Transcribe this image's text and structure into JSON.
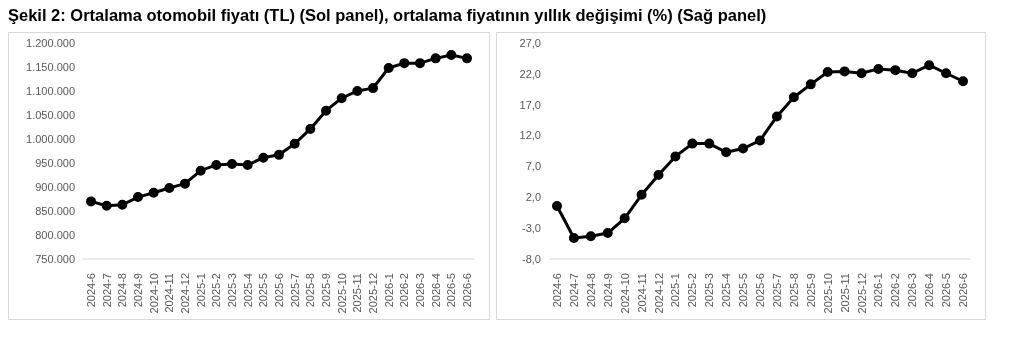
{
  "chart_data": [
    {
      "type": "line",
      "title": "Şekil 2: Ortalama otomobil fiyatı (TL) (Sol panel), ortalama fiyatının yıllık değişimi (%) (Sağ panel)",
      "categories": [
        "2024-6",
        "2024-7",
        "2024-8",
        "2024-9",
        "2024-10",
        "2024-11",
        "2024-12",
        "2025-1",
        "2025-2",
        "2025-3",
        "2025-4",
        "2025-5",
        "2025-6",
        "2025-7",
        "2025-8",
        "2025-9",
        "2025-10",
        "2025-11",
        "2025-12",
        "2026-1",
        "2026-2",
        "2026-3",
        "2026-4",
        "2026-5",
        "2026-6"
      ],
      "series": [
        {
          "color": "#000000",
          "values": [
            870000,
            861000,
            863000,
            879000,
            888000,
            898000,
            907000,
            934000,
            946000,
            948000,
            946000,
            961000,
            967000,
            990000,
            1021000,
            1059000,
            1085000,
            1100000,
            1106000,
            1148000,
            1158000,
            1158000,
            1168000,
            1175000,
            1168000
          ]
        }
      ],
      "ylim": [
        750000,
        1200000
      ],
      "yticks": [
        {
          "value": 750000,
          "label": "750.000"
        },
        {
          "value": 800000,
          "label": "800.000"
        },
        {
          "value": 850000,
          "label": "850.000"
        },
        {
          "value": 900000,
          "label": "900.000"
        },
        {
          "value": 950000,
          "label": "950.000"
        },
        {
          "value": 1000000,
          "label": "1.000.000"
        },
        {
          "value": 1050000,
          "label": "1.050.000"
        },
        {
          "value": 1100000,
          "label": "1.100.000"
        },
        {
          "value": 1150000,
          "label": "1.150.000"
        },
        {
          "value": 1200000,
          "label": "1.200.000"
        }
      ],
      "marker": "circle",
      "line_style": "solid",
      "grid": false,
      "legend": false
    },
    {
      "type": "line",
      "categories": [
        "2024-6",
        "2024-7",
        "2024-8",
        "2024-9",
        "2024-10",
        "2024-11",
        "2024-12",
        "2025-1",
        "2025-2",
        "2025-3",
        "2025-4",
        "2025-5",
        "2025-6",
        "2025-7",
        "2025-8",
        "2025-9",
        "2025-10",
        "2025-11",
        "2025-12",
        "2026-1",
        "2026-2",
        "2026-3",
        "2026-4",
        "2026-5",
        "2026-6"
      ],
      "series": [
        {
          "color": "#000000",
          "values": [
            0.6,
            -4.6,
            -4.3,
            -3.8,
            -1.4,
            2.4,
            5.6,
            8.6,
            10.7,
            10.7,
            9.3,
            9.9,
            11.2,
            15.1,
            18.2,
            20.3,
            22.3,
            22.4,
            22.1,
            22.8,
            22.6,
            22.1,
            23.4,
            22.1,
            20.8
          ]
        }
      ],
      "ylim": [
        -8,
        27
      ],
      "yticks": [
        {
          "value": -8,
          "label": "-8,0"
        },
        {
          "value": -3,
          "label": "-3,0"
        },
        {
          "value": 2,
          "label": "2,0"
        },
        {
          "value": 7,
          "label": "7,0"
        },
        {
          "value": 12,
          "label": "12,0"
        },
        {
          "value": 17,
          "label": "17,0"
        },
        {
          "value": 22,
          "label": "22,0"
        },
        {
          "value": 27,
          "label": "27,0"
        }
      ],
      "marker": "circle",
      "line_style": "solid",
      "grid": false,
      "legend": false
    }
  ]
}
